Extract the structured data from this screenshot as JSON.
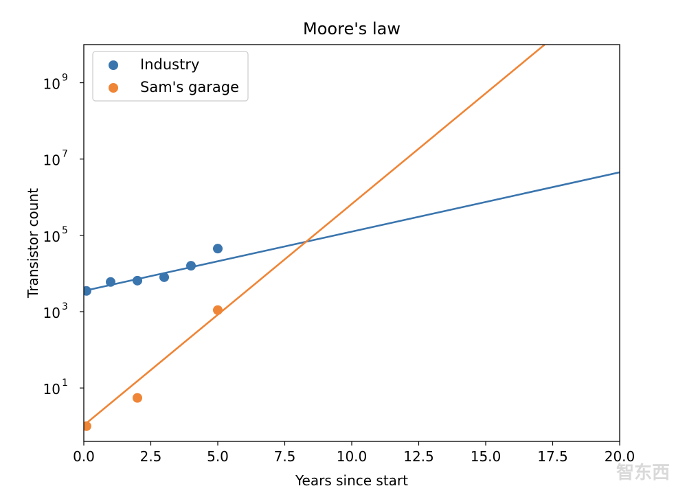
{
  "chart_data": {
    "type": "scatter",
    "title": "Moore's law",
    "xlabel": "Years since start",
    "ylabel": "Transistor count",
    "xscale": "linear",
    "yscale": "log",
    "xlim": [
      0,
      20
    ],
    "ylim_log10": [
      -0.4,
      10
    ],
    "x_ticks": [
      0,
      2.5,
      5,
      7.5,
      10,
      12.5,
      15,
      17.5,
      20
    ],
    "x_tick_labels": [
      "0.0",
      "2.5",
      "5.0",
      "7.5",
      "10.0",
      "12.5",
      "15.0",
      "17.5",
      "20.0"
    ],
    "y_tick_exponents": [
      1,
      3,
      5,
      7,
      9
    ],
    "y_tick_base": "10",
    "legend_position": "top-left",
    "series": [
      {
        "name": "Industry",
        "color": "#3a75ae",
        "points": [
          {
            "x": 0.1,
            "y": 3500
          },
          {
            "x": 1,
            "y": 6000
          },
          {
            "x": 2,
            "y": 6500
          },
          {
            "x": 3,
            "y": 8000
          },
          {
            "x": 4,
            "y": 16000
          },
          {
            "x": 5,
            "y": 45000
          }
        ],
        "fit": {
          "x": [
            0,
            20
          ],
          "y": [
            3500,
            4500000
          ]
        }
      },
      {
        "name": "Sam's garage",
        "color": "#ef8536",
        "points": [
          {
            "x": 0.1,
            "y": 1
          },
          {
            "x": 2,
            "y": 5.5
          },
          {
            "x": 5,
            "y": 1100
          }
        ],
        "fit": {
          "x": [
            0.1,
            17.2
          ],
          "y": [
            1.2,
            10000000000
          ]
        }
      }
    ]
  },
  "watermark": "智东西"
}
